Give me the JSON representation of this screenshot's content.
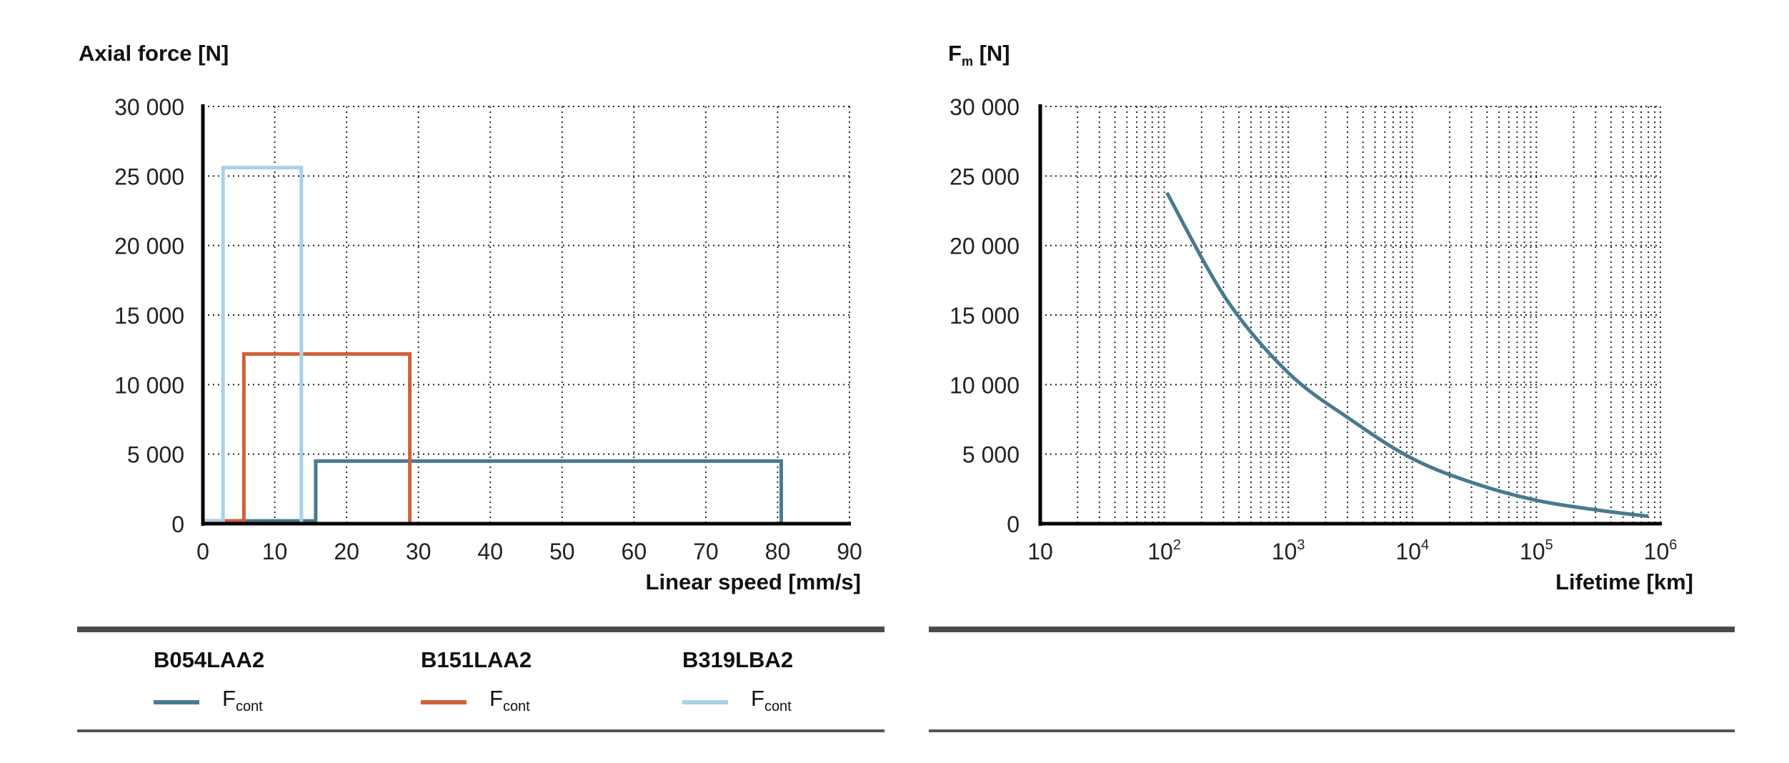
{
  "chart_data": [
    {
      "type": "line",
      "title": "",
      "ylabel": "Axial force [N]",
      "xlabel": "Linear speed [mm/s]",
      "xlim": [
        0,
        90
      ],
      "ylim": [
        0,
        30000
      ],
      "x_ticks": [
        "0",
        "10",
        "20",
        "30",
        "40",
        "50",
        "60",
        "70",
        "80",
        "90"
      ],
      "x_tick_values": [
        0,
        10,
        20,
        30,
        40,
        50,
        60,
        70,
        80,
        90
      ],
      "y_ticks": [
        "0",
        "5 000",
        "10 000",
        "15 000",
        "20 000",
        "25 000",
        "30 000"
      ],
      "y_tick_values": [
        0,
        5000,
        10000,
        15000,
        20000,
        25000,
        30000
      ],
      "grid": true,
      "grid_style": "dotted",
      "series": [
        {
          "name": "B054LAA2 Fcont",
          "color": "#477a8f",
          "points": [
            [
              0,
              200
            ],
            [
              15.7,
              200
            ],
            [
              15.7,
              4500
            ],
            [
              80.5,
              4500
            ],
            [
              80.5,
              0
            ]
          ]
        },
        {
          "name": "B151LAA2 Fcont",
          "color": "#d0603a",
          "points": [
            [
              0,
              200
            ],
            [
              5.7,
              200
            ],
            [
              5.7,
              12200
            ],
            [
              28.8,
              12200
            ],
            [
              28.8,
              0
            ]
          ]
        },
        {
          "name": "B319LBA2 Fcont",
          "color": "#a8d1e8",
          "points": [
            [
              0,
              200
            ],
            [
              2.8,
              200
            ],
            [
              2.8,
              25600
            ],
            [
              13.7,
              25600
            ],
            [
              13.7,
              0
            ]
          ]
        }
      ]
    },
    {
      "type": "line",
      "title": "",
      "ylabel_main": "F",
      "ylabel_sub": "m",
      "ylabel_unit": "[N]",
      "xlabel": "Lifetime [km]",
      "x_scale": "log",
      "xlim": [
        10,
        1000000
      ],
      "ylim": [
        0,
        30000
      ],
      "x_ticks": [
        {
          "base": "10",
          "exp": "",
          "value": 10
        },
        {
          "base": "10",
          "exp": "2",
          "value": 100
        },
        {
          "base": "10",
          "exp": "3",
          "value": 1000
        },
        {
          "base": "10",
          "exp": "4",
          "value": 10000
        },
        {
          "base": "10",
          "exp": "5",
          "value": 100000
        },
        {
          "base": "10",
          "exp": "6",
          "value": 1000000
        }
      ],
      "y_ticks": [
        "0",
        "5 000",
        "10 000",
        "15 000",
        "20 000",
        "25 000",
        "30 000"
      ],
      "y_tick_values": [
        0,
        5000,
        10000,
        15000,
        20000,
        25000,
        30000
      ],
      "grid": true,
      "grid_style": "dotted",
      "series": [
        {
          "color": "#477a8f",
          "points": [
            [
              105,
              23800
            ],
            [
              316,
              16150
            ],
            [
              1000,
              10850
            ],
            [
              3162,
              7500
            ],
            [
              10000,
              4680
            ],
            [
              31623,
              2900
            ],
            [
              100000,
              1680
            ],
            [
              316228,
              970
            ],
            [
              800000,
              530
            ]
          ]
        }
      ]
    }
  ],
  "legend": {
    "groups": [
      {
        "title": "B054LAA2",
        "label_main": "F",
        "label_sub": "cont",
        "color": "#477a8f"
      },
      {
        "title": "B151LAA2",
        "label_main": "F",
        "label_sub": "cont",
        "color": "#d0603a"
      },
      {
        "title": "B319LBA2",
        "label_main": "F",
        "label_sub": "cont",
        "color": "#a8d1e8"
      }
    ]
  }
}
